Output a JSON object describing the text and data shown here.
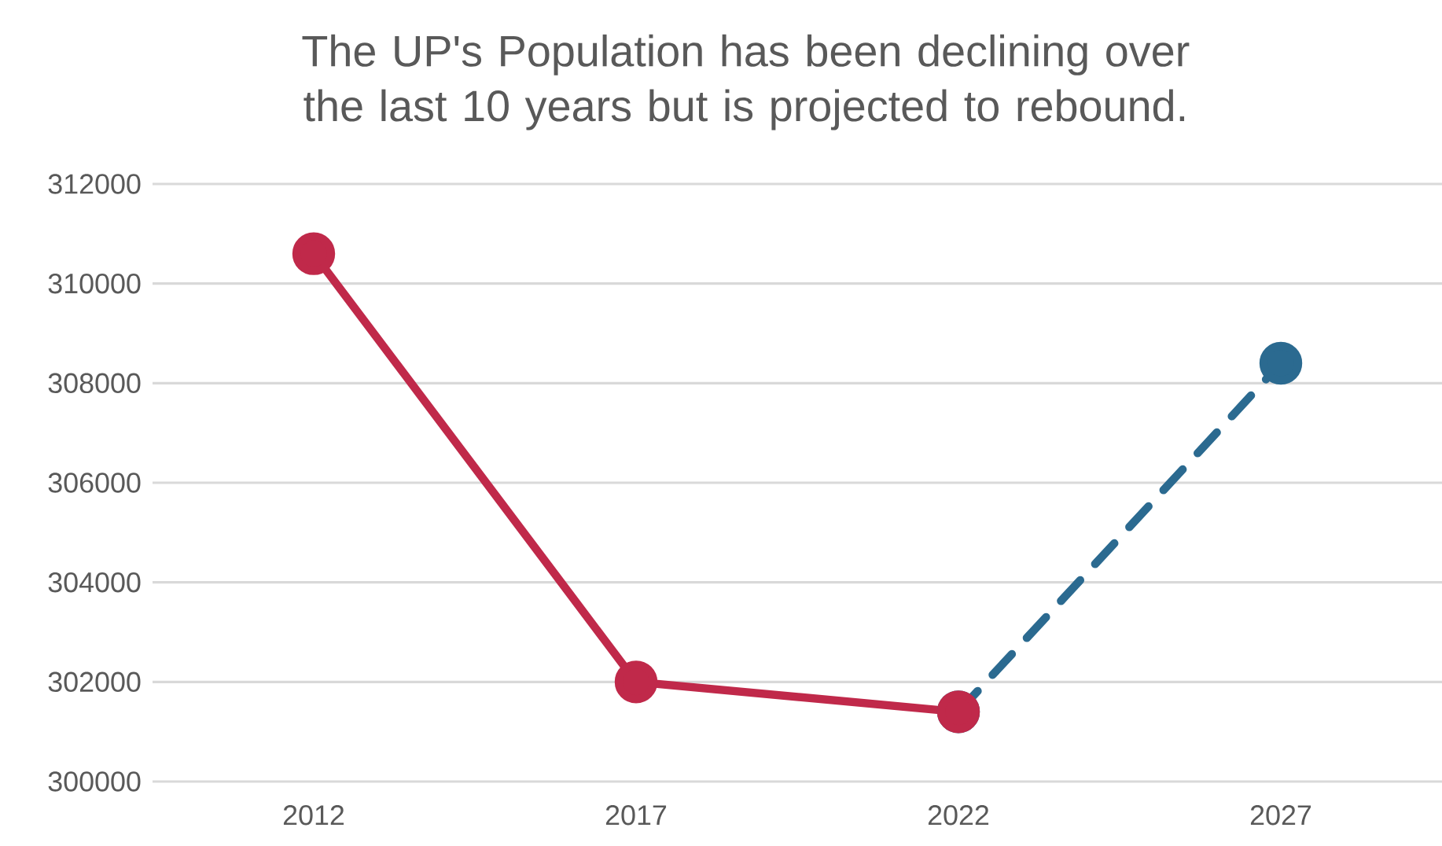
{
  "chart_data": {
    "type": "line",
    "title": "The UP's Population has been declining over the last 10 years but is projected to rebound.",
    "categories": [
      "2012",
      "2017",
      "2022",
      "2027"
    ],
    "series": [
      {
        "color": "#2b6a90",
        "values": [
          null,
          null,
          301400,
          308400
        ],
        "line_style": "dashed"
      },
      {
        "color": "#c0294a",
        "values": [
          310600,
          302000,
          301400,
          null
        ],
        "line_style": "solid"
      }
    ],
    "ylim": [
      300000,
      312000
    ],
    "yticks": [
      300000,
      302000,
      304000,
      306000,
      308000,
      310000,
      312000
    ],
    "grid": "y",
    "marker": "circle"
  }
}
